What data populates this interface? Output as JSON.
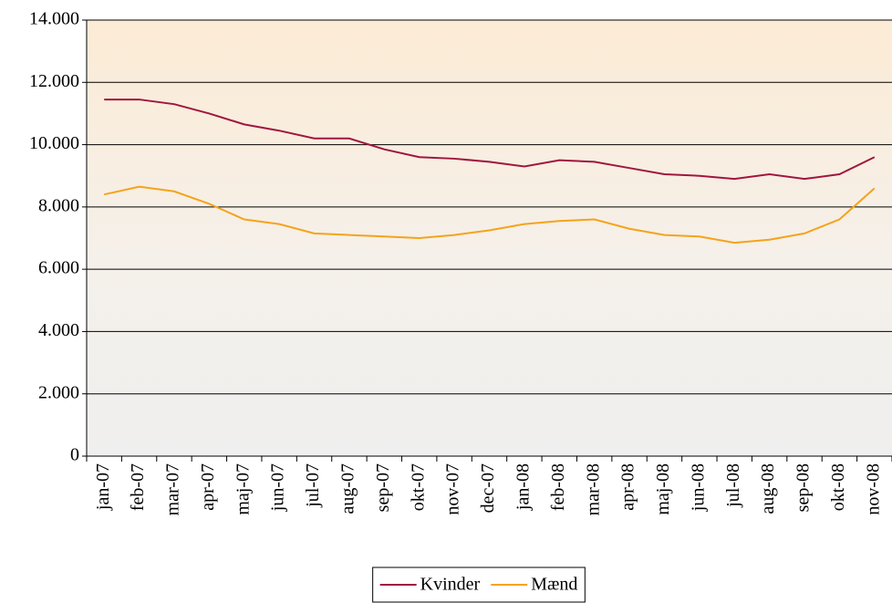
{
  "chart_data": {
    "type": "line",
    "categories": [
      "jan-07",
      "feb-07",
      "mar-07",
      "apr-07",
      "maj-07",
      "jun-07",
      "jul-07",
      "aug-07",
      "sep-07",
      "okt-07",
      "nov-07",
      "dec-07",
      "jan-08",
      "feb-08",
      "mar-08",
      "apr-08",
      "maj-08",
      "jun-08",
      "jul-08",
      "aug-08",
      "sep-08",
      "okt-08",
      "nov-08"
    ],
    "series": [
      {
        "name": "Kvinder",
        "color": "#a0163f",
        "values": [
          11450,
          11450,
          11300,
          11000,
          10650,
          10450,
          10200,
          10200,
          9850,
          9600,
          9550,
          9450,
          9300,
          9500,
          9450,
          9250,
          9050,
          9000,
          8900,
          9050,
          8900,
          9050,
          9600
        ]
      },
      {
        "name": "Mænd",
        "color": "#f5a31a",
        "values": [
          8400,
          8650,
          8500,
          8100,
          7600,
          7450,
          7150,
          7100,
          7050,
          7000,
          7100,
          7250,
          7450,
          7550,
          7600,
          7300,
          7100,
          7050,
          6850,
          6950,
          7150,
          7600,
          8600
        ]
      }
    ],
    "ylim": [
      0,
      14000
    ],
    "yticks": [
      0,
      {
        "value": 2000,
        "label": "2.000"
      },
      {
        "value": 4000,
        "label": "4.000"
      },
      {
        "value": 6000,
        "label": "6.000"
      },
      {
        "value": 8000,
        "label": "8.000"
      },
      {
        "value": 10000,
        "label": "10.000"
      },
      {
        "value": 12000,
        "label": "12.000"
      },
      {
        "value": 14000,
        "label": "14.000"
      }
    ],
    "grid": true,
    "legend": "bottom"
  }
}
